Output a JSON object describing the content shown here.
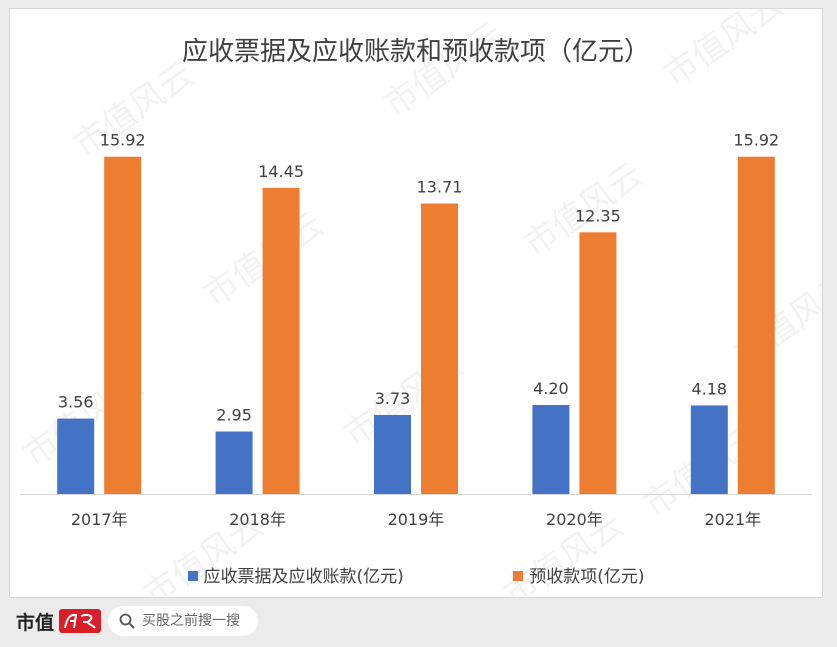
{
  "chart_data": {
    "type": "bar",
    "title": "应收票据及应收账款和预收款项（亿元）",
    "categories": [
      "2017年",
      "2018年",
      "2019年",
      "2020年",
      "2021年"
    ],
    "series": [
      {
        "name": "应收票据及应收账款(亿元)",
        "color": "#4472c4",
        "values": [
          3.56,
          2.95,
          3.73,
          4.2,
          4.18
        ]
      },
      {
        "name": "预收款项(亿元)",
        "color": "#ed7d31",
        "values": [
          15.92,
          14.45,
          13.71,
          12.35,
          15.92
        ]
      }
    ],
    "value_labels": [
      [
        "3.56",
        "2.95",
        "3.73",
        "4.20",
        "4.18"
      ],
      [
        "15.92",
        "14.45",
        "13.71",
        "12.35",
        "15.92"
      ]
    ],
    "ylim": [
      0,
      16
    ],
    "grid": false,
    "legend_position": "bottom"
  },
  "footer": {
    "brand_text": "市值",
    "brand_seal_text": "风云",
    "search_placeholder": "买股之前搜一搜"
  },
  "watermark_text": "市值风云"
}
